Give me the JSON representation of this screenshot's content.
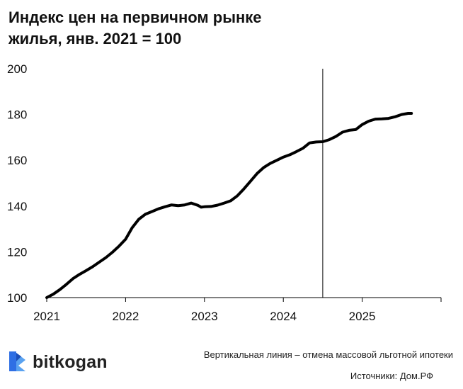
{
  "header": {
    "title_line1": "Индекс цен на первичном рынке",
    "title_line2": "жилья, янв. 2021 = 100"
  },
  "chart_data": {
    "type": "line",
    "title": "Индекс цен на первичном рынке жилья, янв. 2021 = 100",
    "xlabel": "",
    "ylabel": "",
    "xlim": [
      2021.0,
      2026.0
    ],
    "ylim": [
      100,
      200
    ],
    "y_ticks": [
      100,
      120,
      140,
      160,
      180,
      200
    ],
    "x_ticks": [
      2021,
      2022,
      2023,
      2024,
      2025
    ],
    "x_tick_labels": [
      "2021",
      "2022",
      "2023",
      "2024",
      "2025"
    ],
    "y_tick_labels": [
      "100",
      "120",
      "140",
      "160",
      "180",
      "200"
    ],
    "grid": false,
    "line_color": "#000000",
    "vline_x": 2024.5,
    "series": [
      {
        "x": [
          2021.0,
          2021.083,
          2021.167,
          2021.25,
          2021.333,
          2021.417,
          2021.5,
          2021.583,
          2021.667,
          2021.75,
          2021.833,
          2021.917,
          2022.0,
          2022.083,
          2022.167,
          2022.25,
          2022.333,
          2022.417,
          2022.5,
          2022.583,
          2022.667,
          2022.75,
          2022.833,
          2022.917,
          2022.958,
          2023.0,
          2023.083,
          2023.167,
          2023.25,
          2023.333,
          2023.417,
          2023.5,
          2023.583,
          2023.667,
          2023.75,
          2023.833,
          2023.917,
          2024.0,
          2024.083,
          2024.167,
          2024.25,
          2024.333,
          2024.417,
          2024.5,
          2024.583,
          2024.667,
          2024.75,
          2024.833,
          2024.917,
          2025.0,
          2025.083,
          2025.167,
          2025.25,
          2025.333,
          2025.417,
          2025.5,
          2025.583,
          2025.625
        ],
        "values": [
          100.0,
          101.5,
          103.5,
          105.8,
          108.3,
          110.2,
          111.8,
          113.5,
          115.5,
          117.5,
          119.8,
          122.5,
          125.5,
          130.5,
          134.2,
          136.4,
          137.6,
          138.8,
          139.7,
          140.5,
          140.2,
          140.5,
          141.3,
          140.3,
          139.5,
          139.7,
          139.8,
          140.4,
          141.3,
          142.3,
          144.5,
          147.5,
          150.8,
          154.2,
          156.8,
          158.6,
          160.0,
          161.4,
          162.4,
          163.8,
          165.3,
          167.6,
          168.0,
          168.1,
          169.0,
          170.4,
          172.3,
          173.1,
          173.4,
          175.6,
          177.1,
          178.0,
          178.1,
          178.3,
          179.0,
          180.0,
          180.5,
          180.5
        ]
      }
    ]
  },
  "footer": {
    "brand_name": "bitkogan",
    "logo_icon": "bitkogan-logo-icon",
    "note": "Вертикальная линия – отмена массовой льготной ипотеки",
    "source": "Источники: Дом.РФ"
  }
}
